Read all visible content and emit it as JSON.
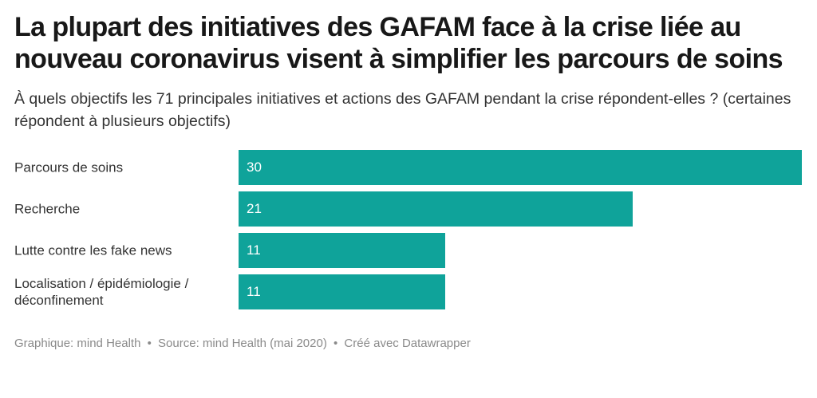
{
  "title": "La plupart des initiatives des GAFAM face à la crise liée au nouveau coronavirus visent à simplifier les parcours de soins",
  "subtitle": "À quels objectifs les 71 principales initiatives et actions des GAFAM pendant la crise répondent-elles ? (certaines répondent à plusieurs objectifs)",
  "colors": {
    "bar": "#0fa39a",
    "value_text": "#ffffff"
  },
  "chart_data": {
    "type": "bar",
    "orientation": "horizontal",
    "categories": [
      "Parcours de soins",
      "Recherche",
      "Lutte contre les fake news",
      "Localisation / épidémiologie / déconfinement"
    ],
    "values": [
      30,
      21,
      11,
      11
    ],
    "value_labels": [
      "30",
      "21",
      "11",
      "11"
    ],
    "xlim": [
      0,
      30
    ],
    "grid": false,
    "legend": "none"
  },
  "footer": {
    "graphic": "Graphique: mind Health",
    "source": "Source: mind Health (mai 2020)",
    "credit": "Créé avec Datawrapper",
    "separator": "•"
  }
}
